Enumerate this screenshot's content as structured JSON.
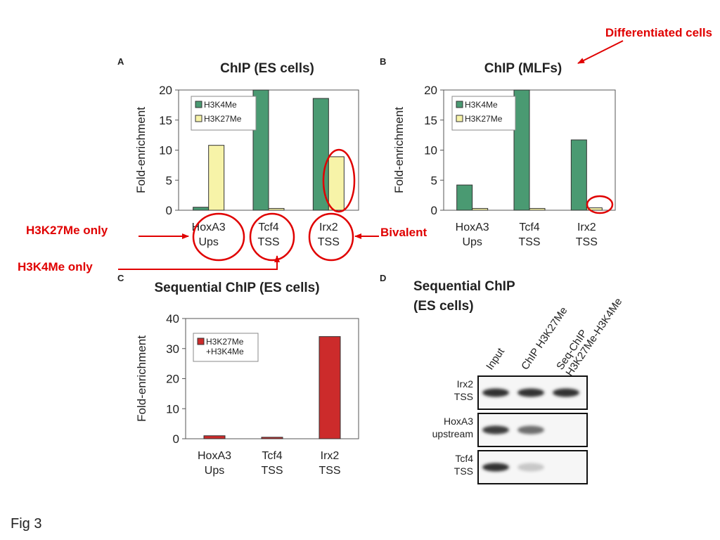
{
  "figure_label": "Fig 3",
  "colors": {
    "h3k4": "#4a9a72",
    "h3k27": "#f7f3a8",
    "seq": "#cc2b2b",
    "annot": "#e00000"
  },
  "annotations": {
    "differentiated": "Differentiated cells",
    "h3k27_only": "H3K27Me only",
    "h3k4_only": "H3K4Me only",
    "bivalent": "Bivalent"
  },
  "chart_data": [
    {
      "panel": "A",
      "type": "bar",
      "title": "ChIP (ES cells)",
      "ylabel": "Fold-enrichment",
      "ylim": [
        0,
        20
      ],
      "yticks": [
        0,
        5,
        10,
        15,
        20
      ],
      "categories": [
        [
          "HoxA3",
          "Ups"
        ],
        [
          "Tcf4",
          "TSS"
        ],
        [
          "Irx2",
          "TSS"
        ]
      ],
      "legend_position": "top-left",
      "series": [
        {
          "name": "H3K4Me",
          "color": "#4a9a72",
          "values": [
            0.5,
            20,
            18.6
          ]
        },
        {
          "name": "H3K27Me",
          "color": "#f7f3a8",
          "values": [
            10.8,
            0.3,
            8.9
          ]
        }
      ]
    },
    {
      "panel": "B",
      "type": "bar",
      "title": "ChIP (MLFs)",
      "ylabel": "Fold-enrichment",
      "ylim": [
        0,
        20
      ],
      "yticks": [
        0,
        5,
        10,
        15,
        20
      ],
      "categories": [
        [
          "HoxA3",
          "Ups"
        ],
        [
          "Tcf4",
          "TSS"
        ],
        [
          "Irx2",
          "TSS"
        ]
      ],
      "legend_position": "top-left",
      "series": [
        {
          "name": "H3K4Me",
          "color": "#4a9a72",
          "values": [
            4.2,
            20,
            11.7
          ]
        },
        {
          "name": "H3K27Me",
          "color": "#f7f3a8",
          "values": [
            0.3,
            0.3,
            0.4
          ]
        }
      ]
    },
    {
      "panel": "C",
      "type": "bar",
      "title": "Sequential ChIP (ES cells)",
      "ylabel": "Fold-enrichment",
      "ylim": [
        0,
        40
      ],
      "yticks": [
        0,
        10,
        20,
        30,
        40
      ],
      "categories": [
        [
          "HoxA3",
          "Ups"
        ],
        [
          "Tcf4",
          "TSS"
        ],
        [
          "Irx2",
          "TSS"
        ]
      ],
      "legend_position": "top-left",
      "series": [
        {
          "name": "H3K27Me +H3K4Me",
          "legend_lines": [
            "H3K27Me",
            "+H3K4Me"
          ],
          "color": "#cc2b2b",
          "values": [
            1.0,
            0.5,
            34
          ]
        }
      ]
    }
  ],
  "gel": {
    "panel": "D",
    "title_lines": [
      "Sequential ChIP",
      "(ES cells)"
    ],
    "lanes": [
      [
        "Input"
      ],
      [
        "ChIP H3K27Me"
      ],
      [
        "Seq-ChIP",
        "H3K27Me-H3K4Me"
      ]
    ],
    "rows": [
      {
        "label_lines": [
          "Irx2",
          "TSS"
        ],
        "bands": [
          0.9,
          0.9,
          0.9
        ]
      },
      {
        "label_lines": [
          "HoxA3",
          "upstream"
        ],
        "bands": [
          0.85,
          0.6,
          0.0
        ]
      },
      {
        "label_lines": [
          "Tcf4",
          "TSS"
        ],
        "bands": [
          0.9,
          0.15,
          0.0
        ]
      }
    ]
  }
}
